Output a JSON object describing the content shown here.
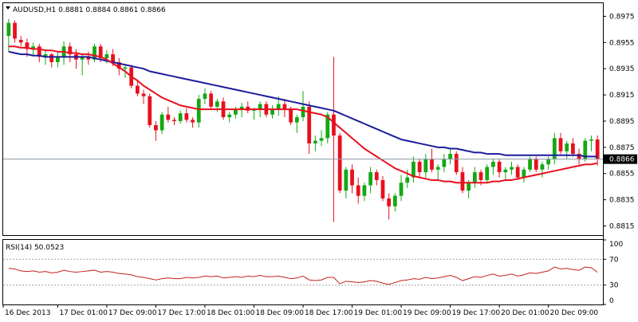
{
  "chart_data": [
    {
      "type": "candlestick",
      "header": "AUDUSD,H1  0.8881 0.8884 0.8861 0.8866",
      "symbol": "AUDUSD",
      "timeframe": "H1",
      "ylim": [
        0.8808,
        0.8985
      ],
      "y_ticks": [
        "0.8975",
        "0.8955",
        "0.8935",
        "0.8915",
        "0.8895",
        "0.8875",
        "0.8855",
        "0.8835",
        "0.8815"
      ],
      "current_price": "0.8866",
      "x_ticks": [
        "16 Dec 2013",
        "17 Dec 01:00",
        "17 Dec 09:00",
        "17 Dec 17:00",
        "18 Dec 01:00",
        "18 Dec 09:00",
        "18 Dec 17:00",
        "19 Dec 01:00",
        "19 Dec 09:00",
        "19 Dec 17:00",
        "20 Dec 01:00",
        "20 Dec 09:00"
      ],
      "candles": [
        [
          0.896,
          0.8973,
          0.8948,
          0.897
        ],
        [
          0.897,
          0.8972,
          0.8955,
          0.8958
        ],
        [
          0.8957,
          0.896,
          0.8952,
          0.8955
        ],
        [
          0.8955,
          0.8958,
          0.8944,
          0.895
        ],
        [
          0.895,
          0.8955,
          0.8945,
          0.8952
        ],
        [
          0.8952,
          0.8954,
          0.894,
          0.8944
        ],
        [
          0.8944,
          0.895,
          0.8938,
          0.8946
        ],
        [
          0.8946,
          0.8947,
          0.8936,
          0.894
        ],
        [
          0.894,
          0.8948,
          0.8936,
          0.8944
        ],
        [
          0.8944,
          0.8956,
          0.8938,
          0.8952
        ],
        [
          0.8952,
          0.8955,
          0.894,
          0.8946
        ],
        [
          0.8946,
          0.895,
          0.8935,
          0.8942
        ],
        [
          0.8942,
          0.8946,
          0.893,
          0.8944
        ],
        [
          0.8944,
          0.8948,
          0.8938,
          0.8942
        ],
        [
          0.8942,
          0.8954,
          0.894,
          0.8952
        ],
        [
          0.8952,
          0.8954,
          0.894,
          0.8943
        ],
        [
          0.8943,
          0.8949,
          0.8939,
          0.8946
        ],
        [
          0.8946,
          0.895,
          0.8937,
          0.894
        ],
        [
          0.894,
          0.8943,
          0.893,
          0.8935
        ],
        [
          0.8935,
          0.8938,
          0.8928,
          0.8936
        ],
        [
          0.8936,
          0.8938,
          0.892,
          0.8922
        ],
        [
          0.8922,
          0.8926,
          0.8914,
          0.8916
        ],
        [
          0.8916,
          0.8919,
          0.8908,
          0.8914
        ],
        [
          0.8914,
          0.8916,
          0.889,
          0.8892
        ],
        [
          0.8892,
          0.8895,
          0.888,
          0.8888
        ],
        [
          0.8888,
          0.8902,
          0.8885,
          0.89
        ],
        [
          0.89,
          0.8906,
          0.8894,
          0.8896
        ],
        [
          0.8896,
          0.8898,
          0.8892,
          0.8895
        ],
        [
          0.8895,
          0.8903,
          0.8893,
          0.8901
        ],
        [
          0.8901,
          0.8905,
          0.8894,
          0.8896
        ],
        [
          0.8896,
          0.8898,
          0.889,
          0.8894
        ],
        [
          0.8894,
          0.8915,
          0.889,
          0.8912
        ],
        [
          0.8912,
          0.892,
          0.8908,
          0.8916
        ],
        [
          0.8916,
          0.8918,
          0.8904,
          0.8906
        ],
        [
          0.8906,
          0.8912,
          0.8902,
          0.891
        ],
        [
          0.891,
          0.8913,
          0.8896,
          0.8898
        ],
        [
          0.8898,
          0.8902,
          0.8894,
          0.89
        ],
        [
          0.89,
          0.8906,
          0.8897,
          0.8904
        ],
        [
          0.8904,
          0.8909,
          0.8898,
          0.8906
        ],
        [
          0.8906,
          0.891,
          0.8901,
          0.8903
        ],
        [
          0.8903,
          0.8905,
          0.8896,
          0.8904
        ],
        [
          0.8904,
          0.891,
          0.8898,
          0.8908
        ],
        [
          0.8908,
          0.891,
          0.8898,
          0.89
        ],
        [
          0.89,
          0.8907,
          0.8897,
          0.8904
        ],
        [
          0.8904,
          0.8914,
          0.8899,
          0.8908
        ],
        [
          0.8908,
          0.8912,
          0.8898,
          0.8904
        ],
        [
          0.8904,
          0.8906,
          0.8892,
          0.8894
        ],
        [
          0.8894,
          0.89,
          0.8886,
          0.8898
        ],
        [
          0.8898,
          0.8918,
          0.8895,
          0.8906
        ],
        [
          0.8906,
          0.891,
          0.887,
          0.8878
        ],
        [
          0.8878,
          0.8884,
          0.8872,
          0.888
        ],
        [
          0.888,
          0.8888,
          0.8876,
          0.8882
        ],
        [
          0.8882,
          0.8902,
          0.8878,
          0.89
        ],
        [
          0.89,
          0.8944,
          0.8818,
          0.8884
        ],
        [
          0.8884,
          0.8886,
          0.884,
          0.8842
        ],
        [
          0.8842,
          0.886,
          0.8836,
          0.8858
        ],
        [
          0.8858,
          0.8862,
          0.884,
          0.8846
        ],
        [
          0.8846,
          0.8852,
          0.8832,
          0.8838
        ],
        [
          0.8838,
          0.8848,
          0.8834,
          0.8846
        ],
        [
          0.8846,
          0.886,
          0.884,
          0.8856
        ],
        [
          0.8856,
          0.8858,
          0.8846,
          0.885
        ],
        [
          0.885,
          0.8853,
          0.8834,
          0.8836
        ],
        [
          0.8836,
          0.884,
          0.882,
          0.883
        ],
        [
          0.883,
          0.884,
          0.8826,
          0.8838
        ],
        [
          0.8838,
          0.8854,
          0.8834,
          0.8848
        ],
        [
          0.8848,
          0.8858,
          0.8844,
          0.8852
        ],
        [
          0.8852,
          0.8868,
          0.8848,
          0.8864
        ],
        [
          0.8864,
          0.8866,
          0.8852,
          0.8856
        ],
        [
          0.8856,
          0.887,
          0.8852,
          0.8866
        ],
        [
          0.8866,
          0.8874,
          0.8856,
          0.8858
        ],
        [
          0.8858,
          0.8862,
          0.885,
          0.886
        ],
        [
          0.886,
          0.887,
          0.8856,
          0.8866
        ],
        [
          0.8866,
          0.8874,
          0.8862,
          0.887
        ],
        [
          0.887,
          0.8872,
          0.8854,
          0.8856
        ],
        [
          0.8856,
          0.886,
          0.884,
          0.8842
        ],
        [
          0.8842,
          0.885,
          0.8836,
          0.8848
        ],
        [
          0.8848,
          0.886,
          0.8844,
          0.8856
        ],
        [
          0.8856,
          0.8858,
          0.8846,
          0.885
        ],
        [
          0.885,
          0.8862,
          0.8848,
          0.886
        ],
        [
          0.886,
          0.8866,
          0.8854,
          0.8864
        ],
        [
          0.8864,
          0.8866,
          0.8852,
          0.8856
        ],
        [
          0.8856,
          0.886,
          0.885,
          0.8858
        ],
        [
          0.8858,
          0.8864,
          0.8854,
          0.886
        ],
        [
          0.886,
          0.8862,
          0.885,
          0.8852
        ],
        [
          0.8852,
          0.886,
          0.8848,
          0.8858
        ],
        [
          0.8858,
          0.8868,
          0.8856,
          0.8866
        ],
        [
          0.8866,
          0.8868,
          0.8856,
          0.8858
        ],
        [
          0.8858,
          0.8864,
          0.8852,
          0.8862
        ],
        [
          0.8862,
          0.8868,
          0.8858,
          0.8866
        ],
        [
          0.8866,
          0.8886,
          0.8862,
          0.8882
        ],
        [
          0.8882,
          0.8886,
          0.887,
          0.8872
        ],
        [
          0.8872,
          0.888,
          0.8866,
          0.8878
        ],
        [
          0.8878,
          0.8882,
          0.8868,
          0.887
        ],
        [
          0.887,
          0.8874,
          0.8862,
          0.8866
        ],
        [
          0.8866,
          0.8882,
          0.8864,
          0.888
        ],
        [
          0.888,
          0.8884,
          0.8872,
          0.8881
        ],
        [
          0.8881,
          0.8884,
          0.8861,
          0.8866
        ]
      ],
      "series": [
        {
          "color": "#1c1c9c",
          "values": [
            0.8948,
            0.8947,
            0.8946,
            0.8946,
            0.8945,
            0.8945,
            0.8944,
            0.8944,
            0.8944,
            0.8944,
            0.8944,
            0.8944,
            0.8944,
            0.8944,
            0.8943,
            0.8942,
            0.8941,
            0.894,
            0.8939,
            0.8938,
            0.8937,
            0.8936,
            0.8935,
            0.8933,
            0.8932,
            0.8931,
            0.893,
            0.8929,
            0.8928,
            0.8927,
            0.8926,
            0.8925,
            0.8924,
            0.8923,
            0.8922,
            0.8921,
            0.892,
            0.8919,
            0.8918,
            0.8917,
            0.8916,
            0.8915,
            0.8914,
            0.8913,
            0.8912,
            0.8911,
            0.891,
            0.8909,
            0.8908,
            0.8907,
            0.8906,
            0.8905,
            0.8904,
            0.8903,
            0.8901,
            0.8899,
            0.8897,
            0.8895,
            0.8893,
            0.8891,
            0.8889,
            0.8887,
            0.8885,
            0.8883,
            0.8881,
            0.888,
            0.8879,
            0.8878,
            0.8877,
            0.8876,
            0.8875,
            0.8875,
            0.8874,
            0.8874,
            0.8873,
            0.8872,
            0.8871,
            0.8871,
            0.887,
            0.887,
            0.887,
            0.8869,
            0.8869,
            0.8869,
            0.8869,
            0.8869,
            0.8869,
            0.8869,
            0.8869,
            0.8869,
            0.8869,
            0.8869,
            0.8869,
            0.8869,
            0.8868,
            0.8868,
            0.8868
          ]
        },
        {
          "color": "#e8101e",
          "values": [
            0.8952,
            0.8952,
            0.8951,
            0.8951,
            0.895,
            0.895,
            0.8949,
            0.8949,
            0.8948,
            0.8948,
            0.8947,
            0.8947,
            0.8946,
            0.8946,
            0.8945,
            0.8944,
            0.8942,
            0.8939,
            0.8936,
            0.8933,
            0.8929,
            0.8926,
            0.8922,
            0.8919,
            0.8916,
            0.8913,
            0.8911,
            0.8909,
            0.8907,
            0.8906,
            0.8905,
            0.8904,
            0.8904,
            0.8904,
            0.8904,
            0.8904,
            0.8904,
            0.8904,
            0.8904,
            0.8904,
            0.8904,
            0.8904,
            0.8904,
            0.8904,
            0.8904,
            0.8904,
            0.8904,
            0.8904,
            0.8903,
            0.8902,
            0.8901,
            0.89,
            0.8898,
            0.8894,
            0.889,
            0.8886,
            0.8882,
            0.8878,
            0.8874,
            0.8871,
            0.8868,
            0.8865,
            0.8862,
            0.8859,
            0.8857,
            0.8855,
            0.8853,
            0.8852,
            0.8851,
            0.885,
            0.885,
            0.8849,
            0.8849,
            0.8848,
            0.8848,
            0.8848,
            0.8848,
            0.8848,
            0.8848,
            0.8849,
            0.8849,
            0.885,
            0.885,
            0.8851,
            0.8852,
            0.8853,
            0.8854,
            0.8855,
            0.8856,
            0.8857,
            0.8858,
            0.8859,
            0.886,
            0.8861,
            0.8862,
            0.8862,
            0.8863
          ]
        }
      ]
    },
    {
      "type": "line",
      "header": "RSI(14) 50.0523",
      "ylim": [
        0,
        100
      ],
      "y_ticks": [
        "100",
        "70",
        "30",
        "0"
      ],
      "levels": [
        70,
        30
      ],
      "series": [
        {
          "color": "#c42020",
          "values": [
            56,
            55,
            52,
            51,
            52,
            50,
            51,
            49,
            50,
            53,
            51,
            50,
            51,
            52,
            53,
            50,
            51,
            50,
            48,
            47,
            46,
            43,
            42,
            40,
            38,
            40,
            41,
            40,
            40,
            42,
            41,
            42,
            44,
            43,
            44,
            41,
            42,
            43,
            42,
            44,
            43,
            45,
            43,
            43,
            44,
            42,
            40,
            41,
            44,
            38,
            37,
            38,
            42,
            42,
            32,
            36,
            35,
            34,
            35,
            37,
            36,
            33,
            31,
            34,
            37,
            38,
            40,
            39,
            42,
            40,
            41,
            43,
            45,
            42,
            37,
            40,
            43,
            42,
            45,
            47,
            44,
            45,
            47,
            44,
            46,
            49,
            48,
            50,
            52,
            58,
            55,
            56,
            54,
            53,
            58,
            57,
            50
          ]
        }
      ]
    }
  ]
}
